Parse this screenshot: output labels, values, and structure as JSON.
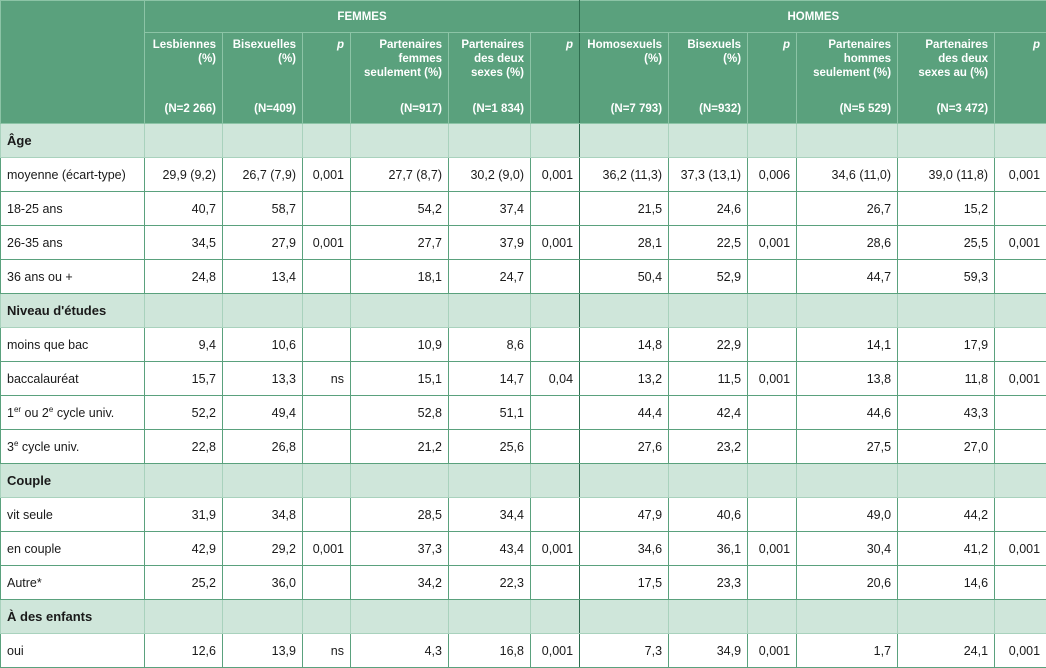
{
  "header": {
    "femmes": "FEMMES",
    "hommes": "HOMMES",
    "columns": [
      {
        "title": "Lesbiennes (%)",
        "n": "(N=2 266)"
      },
      {
        "title": "Bisexuelles (%)",
        "n": "(N=409)"
      },
      {
        "title": "p",
        "n": ""
      },
      {
        "title": "Partenaires femmes seulement (%)",
        "n": "(N=917)"
      },
      {
        "title": "Partenaires des deux sexes (%)",
        "n": "(N=1 834)"
      },
      {
        "title": "p",
        "n": ""
      },
      {
        "title": "Homosexuels (%)",
        "n": "(N=7 793)"
      },
      {
        "title": "Bisexuels (%)",
        "n": "(N=932)"
      },
      {
        "title": "p",
        "n": ""
      },
      {
        "title": "Partenaires hommes seulement (%)",
        "n": "(N=5 529)"
      },
      {
        "title": "Partenaires des deux sexes au (%)",
        "n": "(N=3 472)"
      },
      {
        "title": "p",
        "n": ""
      }
    ]
  },
  "sections": [
    {
      "title": "Âge",
      "rows": [
        {
          "label": "moyenne (écart-type)",
          "values": [
            "29,9 (9,2)",
            "26,7 (7,9)",
            "0,001",
            "27,7 (8,7)",
            "30,2 (9,0)",
            "0,001",
            "36,2 (11,3)",
            "37,3 (13,1)",
            "0,006",
            "34,6 (11,0)",
            "39,0 (11,8)",
            "0,001"
          ]
        },
        {
          "label": "18-25 ans",
          "values": [
            "40,7",
            "58,7",
            "",
            "54,2",
            "37,4",
            "",
            "21,5",
            "24,6",
            "",
            "26,7",
            "15,2",
            ""
          ]
        },
        {
          "label": "26-35 ans",
          "values": [
            "34,5",
            "27,9",
            "0,001",
            "27,7",
            "37,9",
            "0,001",
            "28,1",
            "22,5",
            "0,001",
            "28,6",
            "25,5",
            "0,001"
          ]
        },
        {
          "label": "36 ans ou +",
          "values": [
            "24,8",
            "13,4",
            "",
            "18,1",
            "24,7",
            "",
            "50,4",
            "52,9",
            "",
            "44,7",
            "59,3",
            ""
          ]
        }
      ]
    },
    {
      "title": "Niveau d'études",
      "rows": [
        {
          "label": "moins que bac",
          "values": [
            "9,4",
            "10,6",
            "",
            "10,9",
            "8,6",
            "",
            "14,8",
            "22,9",
            "",
            "14,1",
            "17,9",
            ""
          ]
        },
        {
          "label": "baccalauréat",
          "values": [
            "15,7",
            "13,3",
            "ns",
            "15,1",
            "14,7",
            "0,04",
            "13,2",
            "11,5",
            "0,001",
            "13,8",
            "11,8",
            "0,001"
          ]
        },
        {
          "label": "1er ou 2e cycle univ.",
          "values": [
            "52,2",
            "49,4",
            "",
            "52,8",
            "51,1",
            "",
            "44,4",
            "42,4",
            "",
            "44,6",
            "43,3",
            ""
          ]
        },
        {
          "label": "3e cycle univ.",
          "values": [
            "22,8",
            "26,8",
            "",
            "21,2",
            "25,6",
            "",
            "27,6",
            "23,2",
            "",
            "27,5",
            "27,0",
            ""
          ]
        }
      ]
    },
    {
      "title": "Couple",
      "rows": [
        {
          "label": "vit seule",
          "values": [
            "31,9",
            "34,8",
            "",
            "28,5",
            "34,4",
            "",
            "47,9",
            "40,6",
            "",
            "49,0",
            "44,2",
            ""
          ]
        },
        {
          "label": "en couple",
          "values": [
            "42,9",
            "29,2",
            "0,001",
            "37,3",
            "43,4",
            "0,001",
            "34,6",
            "36,1",
            "0,001",
            "30,4",
            "41,2",
            "0,001"
          ]
        },
        {
          "label": "Autre*",
          "values": [
            "25,2",
            "36,0",
            "",
            "34,2",
            "22,3",
            "",
            "17,5",
            "23,3",
            "",
            "20,6",
            "14,6",
            ""
          ]
        }
      ]
    },
    {
      "title": "À des enfants",
      "rows": [
        {
          "label": "oui",
          "values": [
            "12,6",
            "13,9",
            "ns",
            "4,3",
            "16,8",
            "0,001",
            "7,3",
            "34,9",
            "0,001",
            "1,7",
            "24,1",
            "0,001"
          ]
        }
      ]
    }
  ],
  "colors": {
    "header_green": "#5aa17d",
    "section_green": "#cfe6da",
    "border": "#5aa17d"
  }
}
